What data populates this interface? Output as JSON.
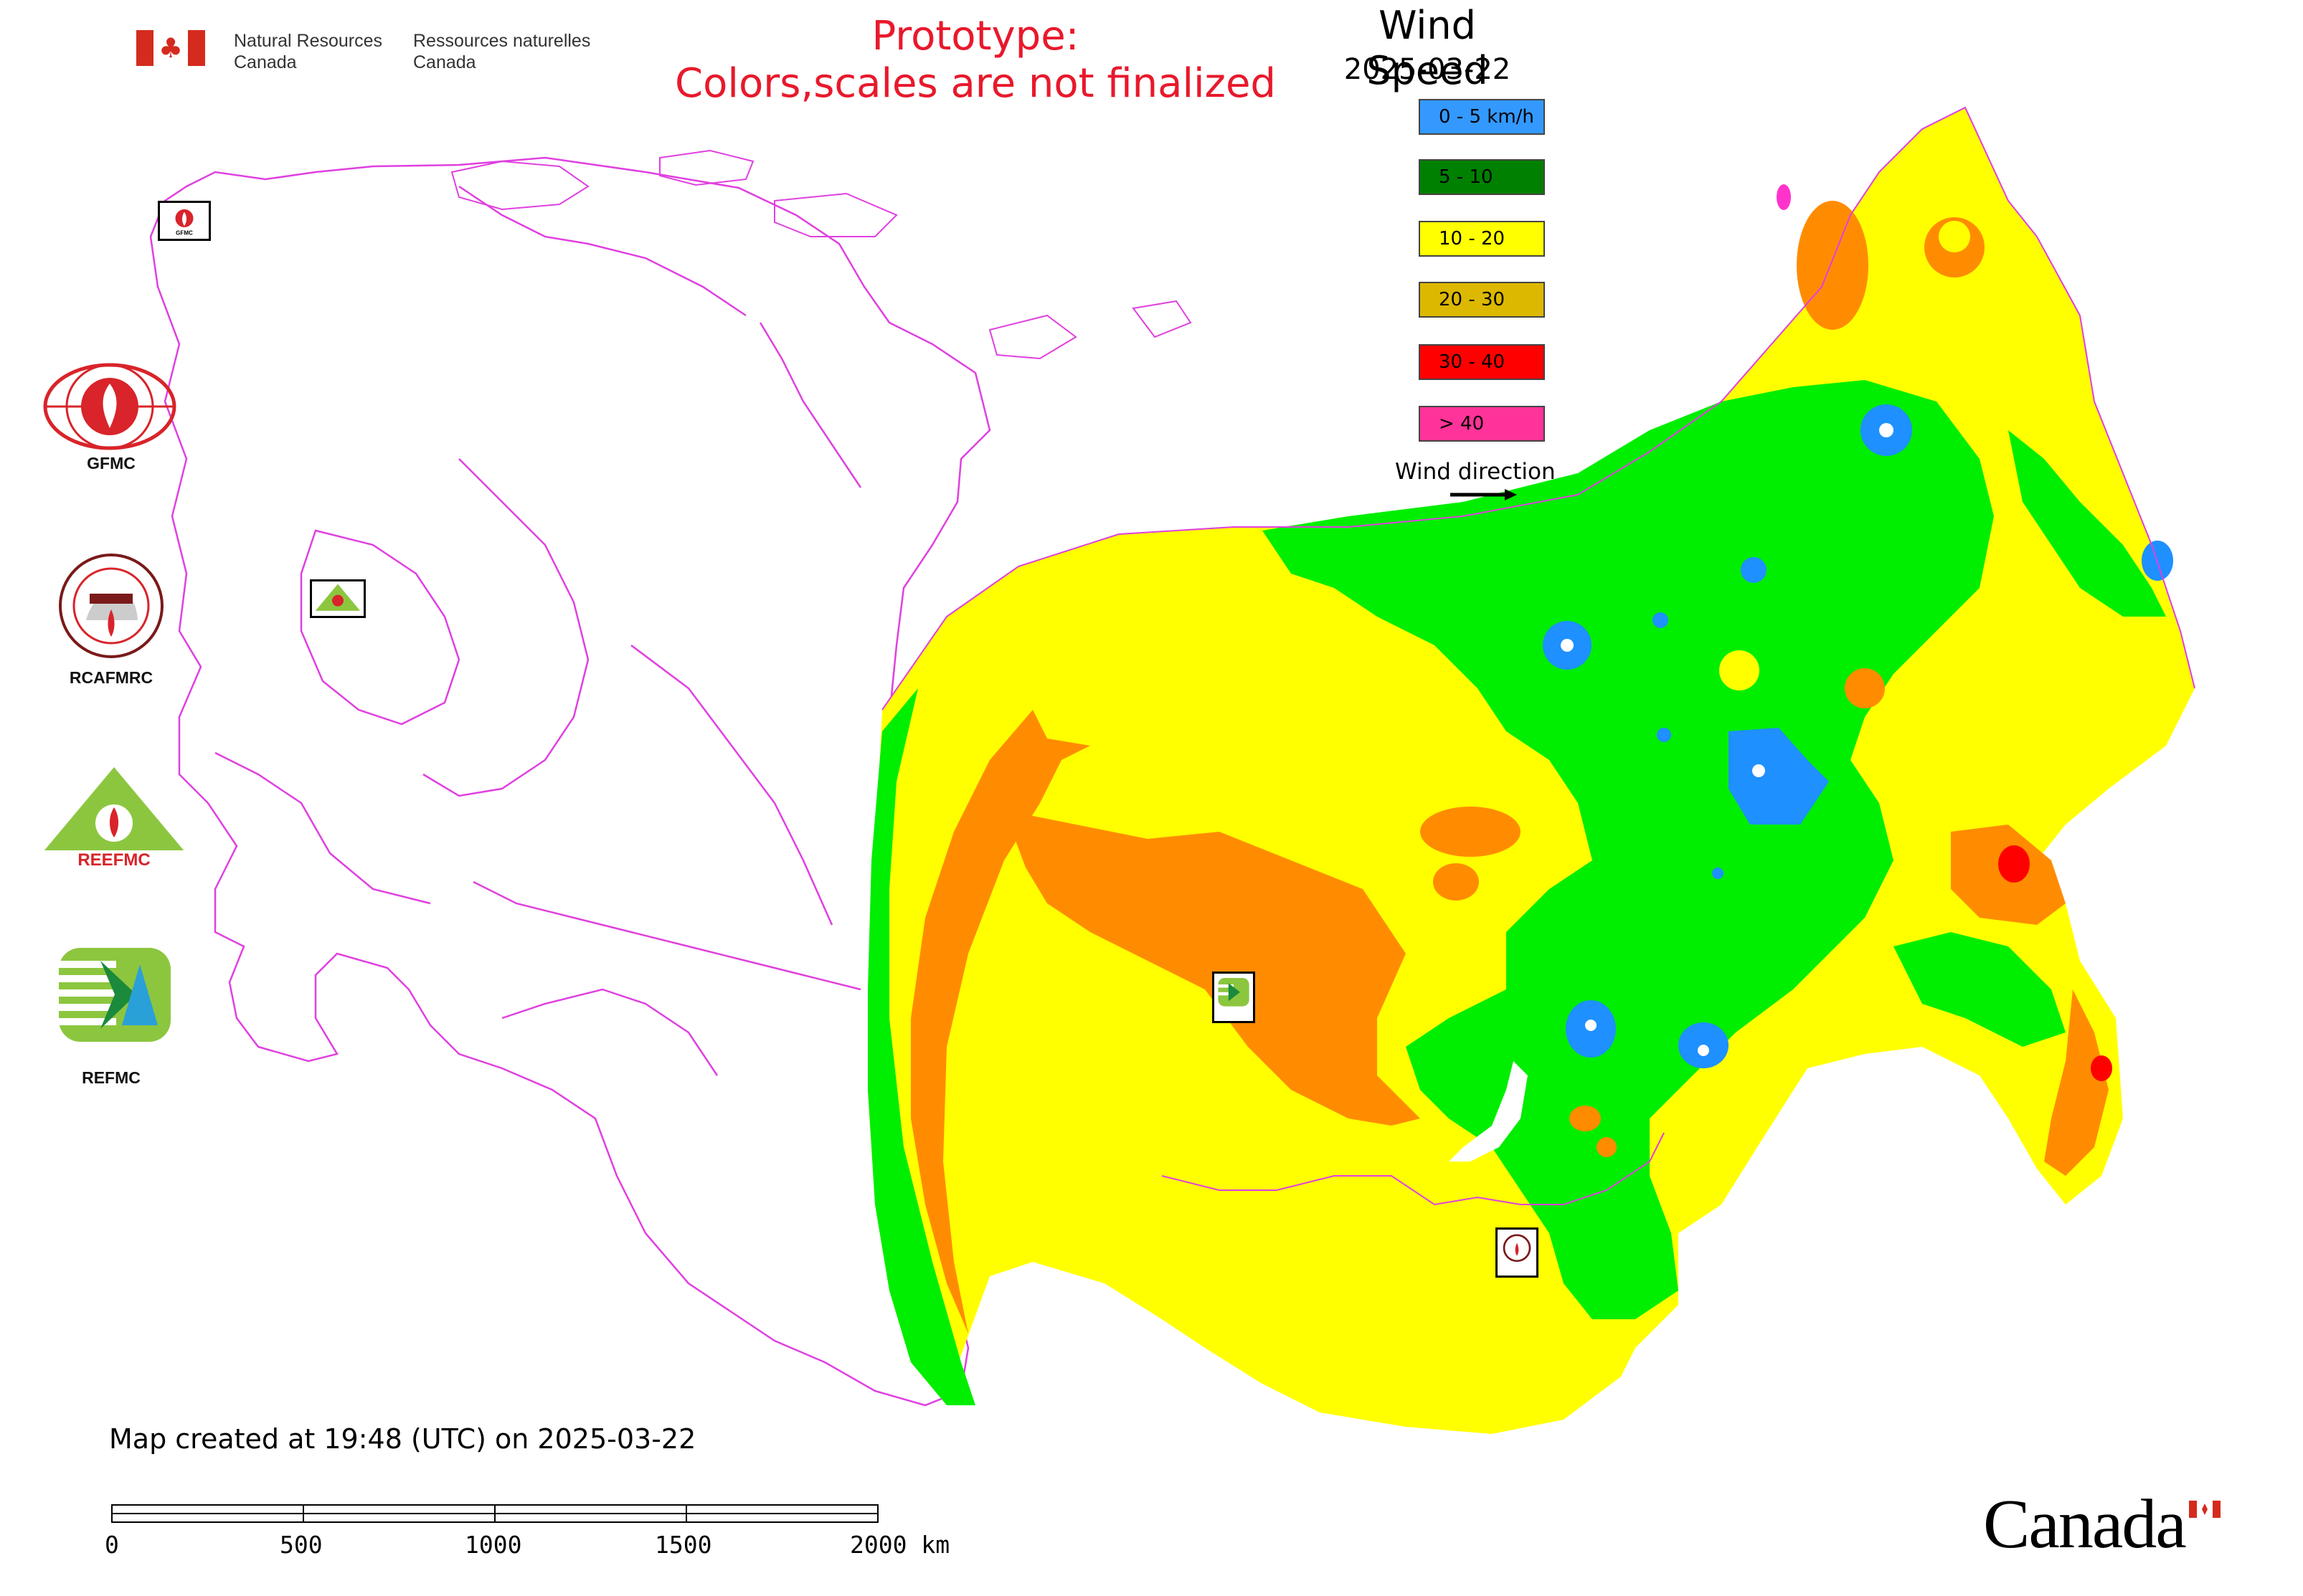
{
  "header": {
    "agency_en": "Natural Resources\nCanada",
    "agency_fr": "Ressources naturelles\nCanada",
    "prototype_line1": "Prototype:",
    "prototype_line2": "Colors,scales are not finalized"
  },
  "legend": {
    "title": "Wind Speed",
    "date": "2025-03-22",
    "items": [
      {
        "label": "0 - 5 km/h",
        "color": "#3399ff"
      },
      {
        "label": "5 - 10",
        "color": "#008000"
      },
      {
        "label": "10 - 20",
        "color": "#ffff00"
      },
      {
        "label": "20 - 30",
        "color": "#ddb800"
      },
      {
        "label": "30 - 40",
        "color": "#ff0000"
      },
      {
        "label": "> 40",
        "color": "#ff3399"
      }
    ],
    "wind_direction_label": "Wind direction"
  },
  "map_colors": {
    "calm": "#1e90ff",
    "light_green": "#00ee00",
    "yellow": "#ffff00",
    "orange": "#ff8c00",
    "red": "#ff0000",
    "magenta": "#ff33cc",
    "boundary": "#e040e0"
  },
  "side_logos": [
    {
      "name": "GFMC",
      "caption": "GFMC"
    },
    {
      "name": "RCAFMRC",
      "caption": "RCAFMRC"
    },
    {
      "name": "REEFMC",
      "caption": "REEFMC"
    },
    {
      "name": "REFMC",
      "caption": "REFMC"
    }
  ],
  "footer": {
    "created": "Map created at 19:48 (UTC) on 2025-03-22",
    "scale_ticks": [
      "0",
      "500",
      "1000",
      "1500",
      "2000 km"
    ],
    "wordmark": "Canada"
  }
}
